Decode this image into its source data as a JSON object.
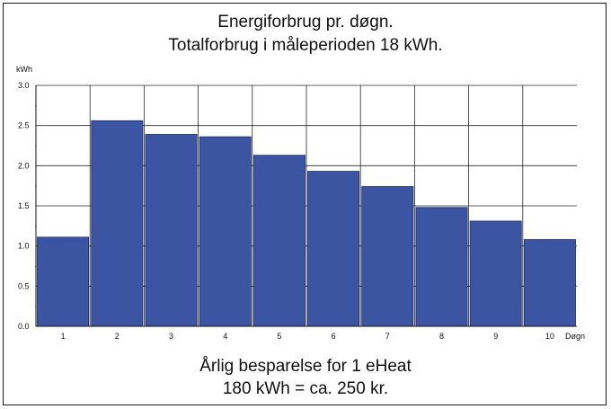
{
  "chart_data": {
    "type": "bar",
    "title": "Energiforbrug pr. døgn.",
    "subtitle": "Totalforbrug i måleperioden 18 kWh.",
    "ylabel": "kWh",
    "xlabel": "Døgn",
    "categories": [
      "1",
      "2",
      "3",
      "4",
      "5",
      "6",
      "7",
      "8",
      "9",
      "10"
    ],
    "values": [
      1.11,
      2.56,
      2.39,
      2.36,
      2.13,
      1.93,
      1.74,
      1.48,
      1.31,
      1.08
    ],
    "ylim": [
      0,
      3.0
    ],
    "yticks": [
      "0.0",
      "0.5",
      "1.0",
      "1.5",
      "2.0",
      "2.5",
      "3.0"
    ],
    "grid": true,
    "bar_color": "#3b55a3",
    "footer": {
      "line1": "Årlig besparelse for 1 eHeat",
      "line2": "180 kWh = ca. 250 kr."
    }
  }
}
